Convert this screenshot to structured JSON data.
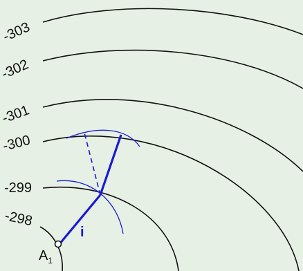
{
  "colors": {
    "background": "#e6f0e4",
    "contour": "#111111",
    "construction": "#1a1ad6"
  },
  "contours": [
    {
      "label": "-303"
    },
    {
      "label": "-302"
    },
    {
      "label": "-301"
    },
    {
      "label": "-300"
    },
    {
      "label": "-299"
    },
    {
      "label": "-298"
    }
  ],
  "point": {
    "name": "A",
    "subscript": "1"
  },
  "segment_label": "i"
}
